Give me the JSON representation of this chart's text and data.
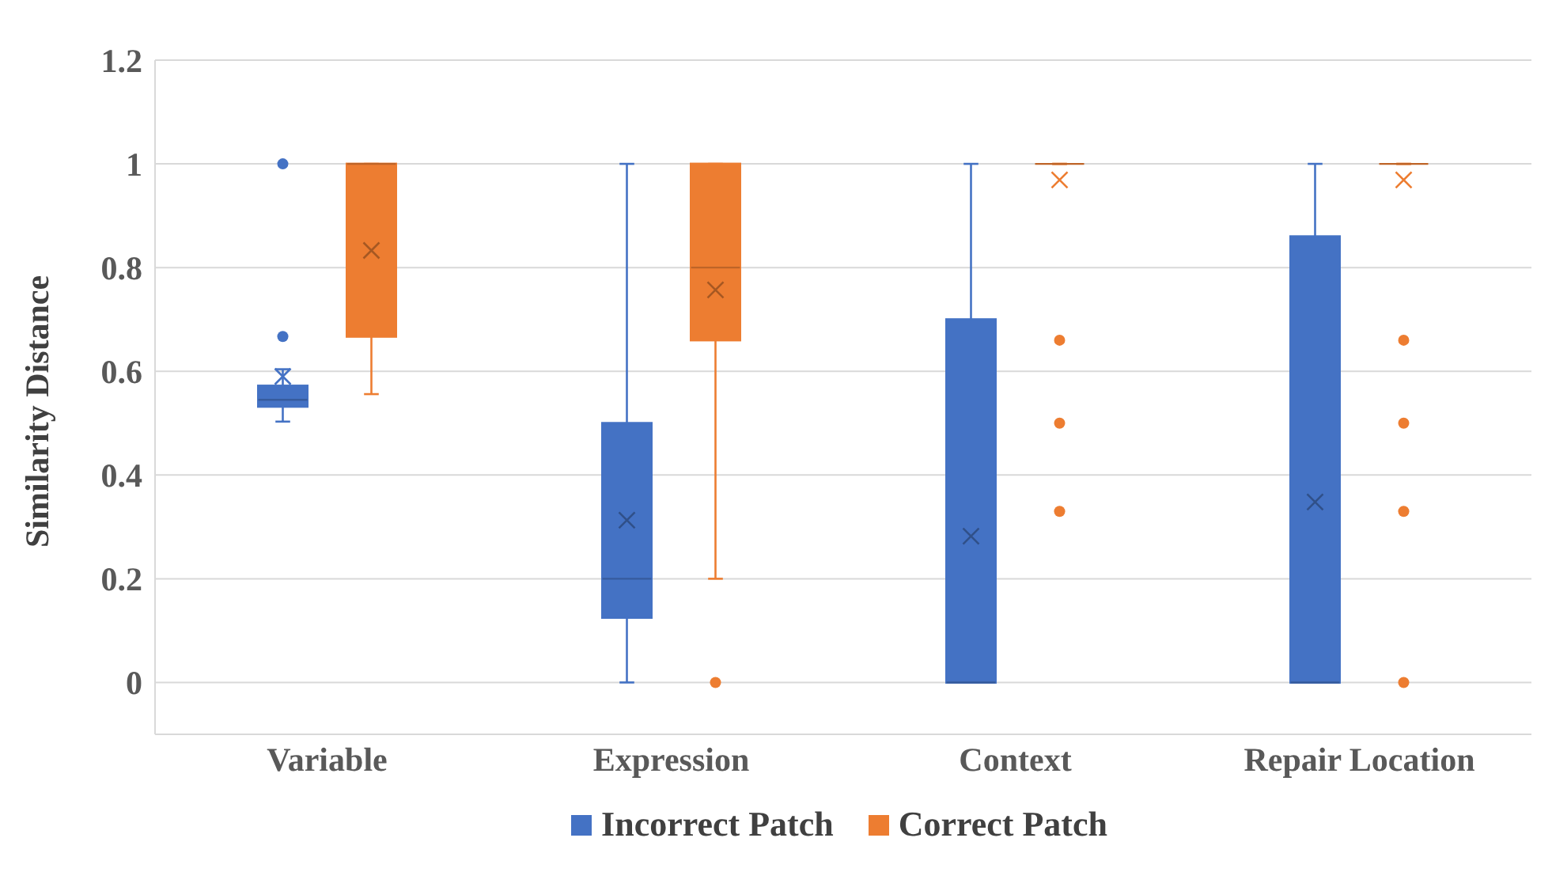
{
  "chart_data": {
    "type": "box",
    "ylabel": "Similarity Distance",
    "categories": [
      "Variable",
      "Expression",
      "Context",
      "Repair Location"
    ],
    "ylim": [
      -0.1,
      1.2
    ],
    "yticks": [
      0,
      0.2,
      0.4,
      0.6,
      0.8,
      1,
      1.2
    ],
    "grid": "y",
    "legend": "bottom",
    "marker": "circle",
    "series": [
      {
        "name": "Incorrect Patch",
        "color": "#4472c4",
        "boxes": [
          {
            "low": 0.503,
            "q1": 0.532,
            "median": 0.545,
            "q3": 0.572,
            "high": 0.604,
            "mean": 0.59,
            "outliers": [
              0.667,
              1
            ]
          },
          {
            "low": 0,
            "q1": 0.125,
            "median": 0.2,
            "q3": 0.5,
            "high": 1,
            "mean": 0.313
          },
          {
            "low": 0,
            "q1": 0,
            "median": 0,
            "q3": 0.7,
            "high": 1,
            "mean": 0.282
          },
          {
            "low": 0,
            "q1": 0,
            "median": 0,
            "q3": 0.86,
            "high": 1,
            "mean": 0.348
          }
        ]
      },
      {
        "name": "Correct Patch",
        "color": "#ed7d31",
        "boxes": [
          {
            "low": 0.556,
            "q1": 0.667,
            "median": 1,
            "q3": 1,
            "high": 1,
            "mean": 0.833
          },
          {
            "low": 0.2,
            "q1": 0.66,
            "median": 0.8,
            "q3": 1,
            "high": 1,
            "mean": 0.757,
            "outliers": [
              0
            ]
          },
          {
            "low": 1,
            "q1": 1,
            "median": 1,
            "q3": 1,
            "high": 1,
            "mean": 0.969,
            "outliers": [
              0.66,
              0.5,
              0.33
            ]
          },
          {
            "low": 1,
            "q1": 1,
            "median": 1,
            "q3": 1,
            "high": 1,
            "mean": 0.969,
            "outliers": [
              0.66,
              0.5,
              0.33,
              0
            ]
          }
        ]
      }
    ]
  }
}
